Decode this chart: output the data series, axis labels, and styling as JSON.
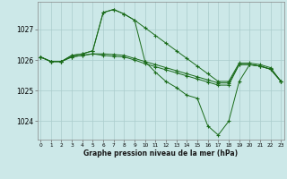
{
  "background_color": "#cce8e8",
  "grid_color": "#aacccc",
  "line_color": "#1a6b1a",
  "x_labels": [
    "0",
    "1",
    "2",
    "3",
    "4",
    "5",
    "6",
    "7",
    "8",
    "9",
    "10",
    "11",
    "12",
    "13",
    "14",
    "15",
    "16",
    "17",
    "18",
    "19",
    "20",
    "21",
    "22",
    "23"
  ],
  "xlabel": "Graphe pression niveau de la mer (hPa)",
  "ylim": [
    1023.4,
    1027.9
  ],
  "yticks": [
    1024,
    1025,
    1026,
    1027
  ],
  "series1": [
    1026.1,
    1025.95,
    1025.95,
    1026.15,
    1026.2,
    1026.3,
    1027.55,
    1027.65,
    1027.5,
    1027.3,
    1027.05,
    1026.8,
    1026.55,
    1026.3,
    1026.05,
    1025.8,
    1025.55,
    1025.3,
    1025.3,
    1025.9,
    1025.9,
    1025.85,
    1025.75,
    1025.3
  ],
  "series2": [
    1026.1,
    1025.95,
    1025.95,
    1026.15,
    1026.2,
    1026.3,
    1027.55,
    1027.65,
    1027.5,
    1027.3,
    1025.95,
    1025.6,
    1025.3,
    1025.1,
    1024.85,
    1024.75,
    1023.85,
    1023.55,
    1024.0,
    1025.3,
    1025.85,
    1025.8,
    1025.7,
    1025.3
  ],
  "series3": [
    1026.1,
    1025.95,
    1025.95,
    1026.1,
    1026.15,
    1026.2,
    1026.2,
    1026.18,
    1026.15,
    1026.05,
    1025.95,
    1025.85,
    1025.75,
    1025.65,
    1025.55,
    1025.45,
    1025.35,
    1025.25,
    1025.25,
    1025.85,
    1025.85,
    1025.8,
    1025.7,
    1025.3
  ],
  "series4": [
    1026.1,
    1025.95,
    1025.95,
    1026.1,
    1026.15,
    1026.2,
    1026.15,
    1026.12,
    1026.1,
    1026.0,
    1025.88,
    1025.78,
    1025.68,
    1025.58,
    1025.48,
    1025.38,
    1025.28,
    1025.18,
    1025.18,
    1025.85,
    1025.85,
    1025.8,
    1025.7,
    1025.3
  ]
}
